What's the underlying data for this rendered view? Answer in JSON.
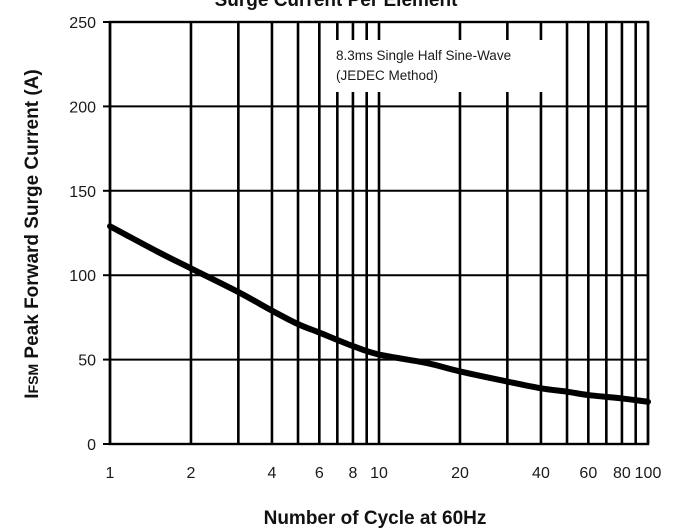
{
  "chart_data": {
    "type": "line",
    "title": "Surge Current Per Element",
    "xlabel": "Number of Cycle at 60Hz",
    "ylabel_prefix": "I",
    "ylabel_sub": "FSM",
    "ylabel_rest": " Peak Forward Surge Current (A)",
    "x_scale": "log",
    "xlim": [
      1,
      100
    ],
    "ylim": [
      0,
      250
    ],
    "grid": true,
    "x_gridlines": [
      1,
      2,
      3,
      4,
      5,
      6,
      7,
      8,
      9,
      10,
      20,
      30,
      40,
      50,
      60,
      70,
      80,
      90,
      100
    ],
    "x_ticks": [
      1,
      2,
      4,
      6,
      8,
      10,
      20,
      40,
      60,
      80,
      100
    ],
    "x_tick_labels": [
      "1",
      "2",
      "4",
      "6",
      "8",
      "10",
      "20",
      "40",
      "60",
      "80",
      "100"
    ],
    "y_ticks": [
      0,
      50,
      100,
      150,
      200,
      250
    ],
    "y_tick_labels": [
      "0",
      "50",
      "100",
      "150",
      "200",
      "250"
    ],
    "annotation_lines": [
      "8.3ms Single Half Sine-Wave",
      "(JEDEC Method)"
    ],
    "series": [
      {
        "x": [
          1,
          1.5,
          2,
          3,
          4,
          5,
          6,
          8,
          10,
          15,
          20,
          30,
          40,
          50,
          60,
          80,
          100
        ],
        "y": [
          129,
          114,
          104,
          90,
          79,
          71,
          66,
          58,
          53,
          48,
          43,
          37,
          33,
          31,
          29,
          27,
          25
        ]
      }
    ],
    "line_color": "#000000",
    "grid_color": "#000000"
  }
}
